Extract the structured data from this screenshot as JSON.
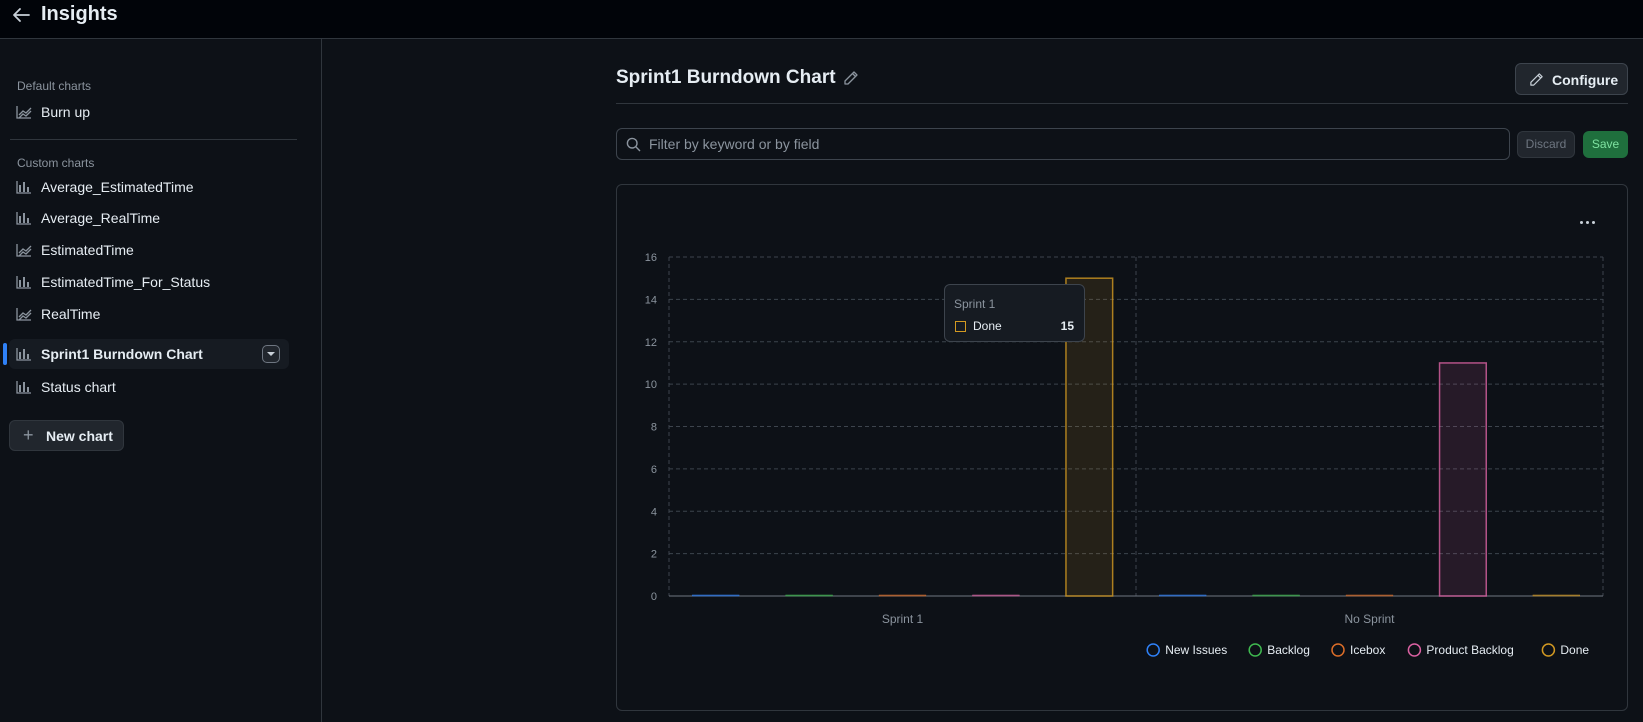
{
  "header": {
    "title": "Insights",
    "back_icon": "arrow-left-icon"
  },
  "sidebar": {
    "default_label": "Default charts",
    "default_items": [
      {
        "label": "Burn up",
        "icon": "graph-line-icon"
      }
    ],
    "custom_label": "Custom charts",
    "custom_items": [
      {
        "label": "Average_EstimatedTime",
        "icon": "bar-chart-icon"
      },
      {
        "label": "Average_RealTime",
        "icon": "bar-chart-icon"
      },
      {
        "label": "EstimatedTime",
        "icon": "graph-line-icon"
      },
      {
        "label": "EstimatedTime_For_Status",
        "icon": "bar-chart-icon"
      },
      {
        "label": "RealTime",
        "icon": "graph-line-icon"
      },
      {
        "label": "Sprint1 Burndown Chart",
        "icon": "bar-chart-icon",
        "active": true
      },
      {
        "label": "Status chart",
        "icon": "bar-chart-icon"
      }
    ],
    "new_chart_label": "New chart"
  },
  "main": {
    "title": "Sprint1 Burndown Chart",
    "configure_label": "Configure",
    "filter_placeholder": "Filter by keyword or by field",
    "discard_label": "Discard",
    "save_label": "Save"
  },
  "tooltip": {
    "title": "Sprint 1",
    "series": "Done",
    "value": "15"
  },
  "chart_data": {
    "type": "bar",
    "categories": [
      "Sprint 1",
      "No Sprint"
    ],
    "series": [
      {
        "name": "New Issues",
        "color": "#2f81f7",
        "values": [
          0,
          0
        ]
      },
      {
        "name": "Backlog",
        "color": "#3fb950",
        "values": [
          0,
          0
        ]
      },
      {
        "name": "Icebox",
        "color": "#db6d28",
        "values": [
          0,
          0
        ]
      },
      {
        "name": "Product Backlog",
        "color": "#db61a2",
        "values": [
          0,
          11
        ]
      },
      {
        "name": "Done",
        "color": "#d29922",
        "values": [
          15,
          0
        ]
      }
    ],
    "ylim": [
      0,
      16
    ],
    "yticks": [
      0,
      2,
      4,
      6,
      8,
      10,
      12,
      14,
      16
    ],
    "grid": true,
    "legend": "bottom-right"
  }
}
